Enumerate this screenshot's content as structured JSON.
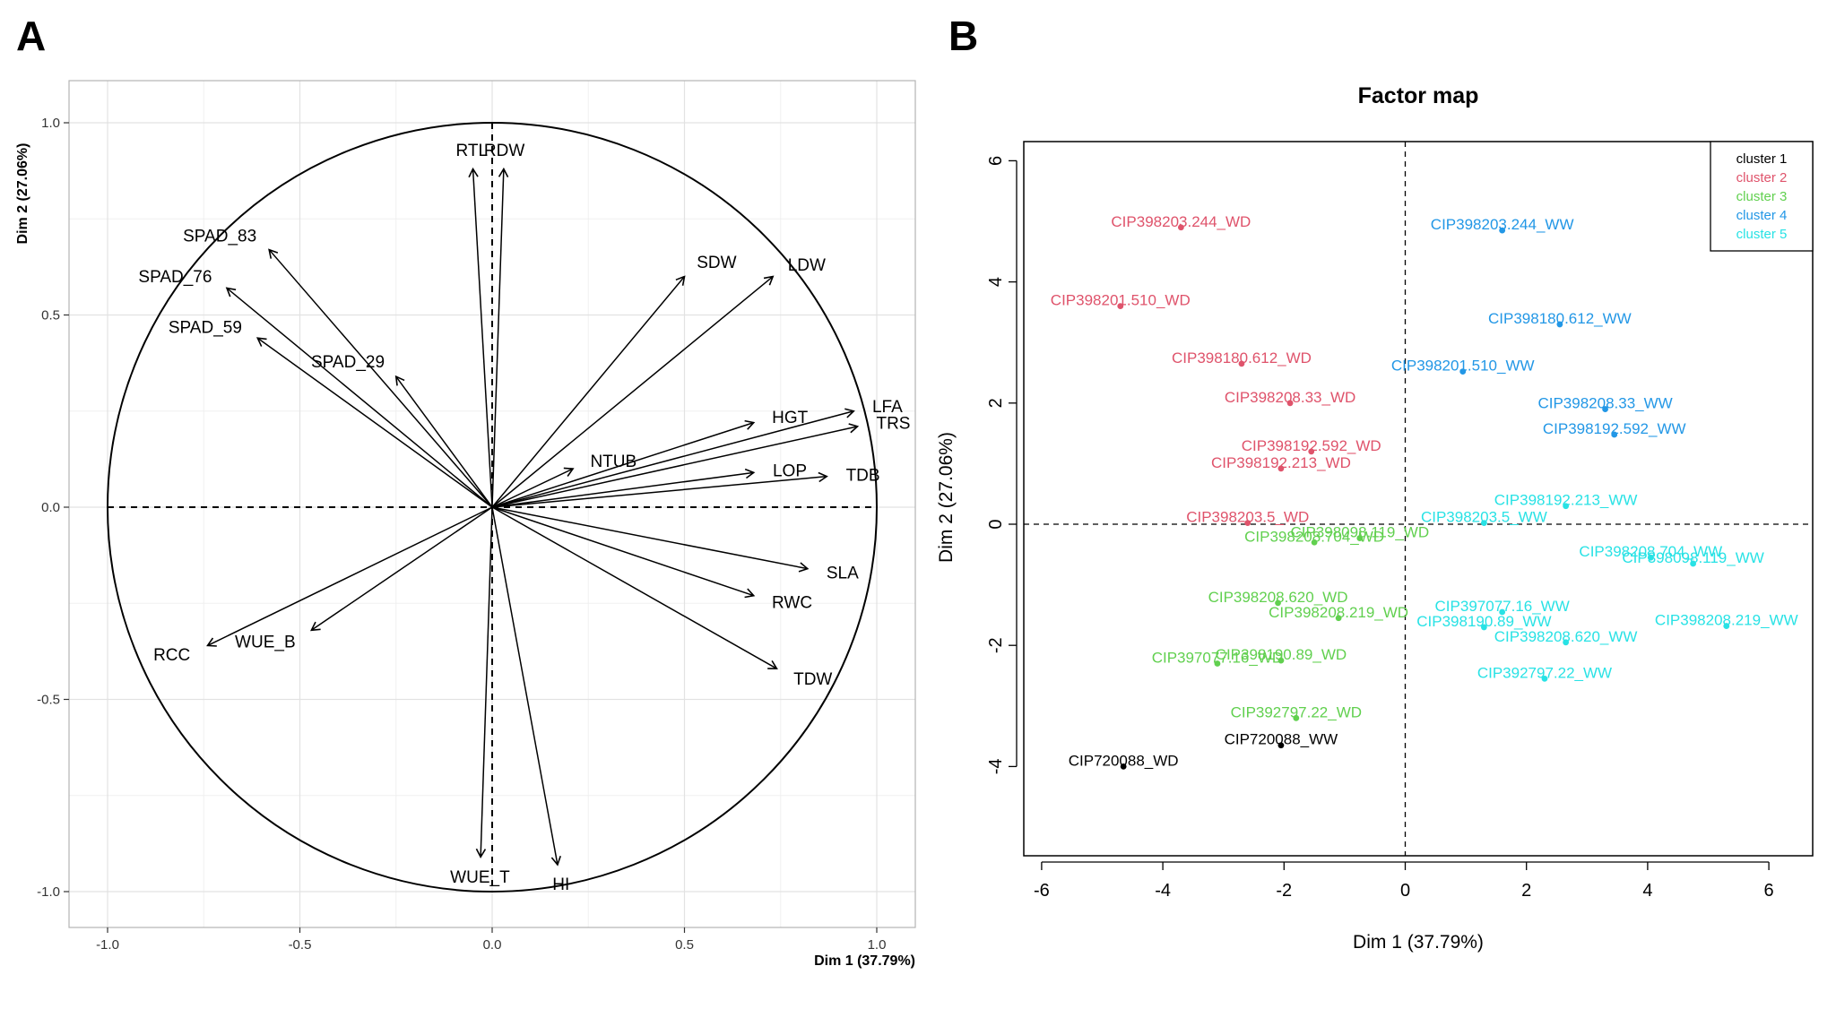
{
  "panels": {
    "a_letter": "A",
    "b_letter": "B"
  },
  "chart_data": [
    {
      "type": "scatter",
      "subtype": "pca-variable-correlation-circle",
      "xlabel": "Dim 1 (37.79%)",
      "ylabel": "Dim 2 (27.06%)",
      "xlim": [
        -1.0,
        1.0
      ],
      "ylim": [
        -1.0,
        1.0
      ],
      "xticks": [
        "-1.0",
        "-0.5",
        "0.0",
        "0.5",
        "1.0"
      ],
      "yticks": [
        "-1.0",
        "-0.5",
        "0.0",
        "0.5",
        "1.0"
      ],
      "grid": true,
      "vectors": [
        {
          "name": "RTL",
          "x": -0.05,
          "y": 0.88
        },
        {
          "name": "RDW",
          "x": 0.03,
          "y": 0.88
        },
        {
          "name": "SPAD_83",
          "x": -0.58,
          "y": 0.67
        },
        {
          "name": "SPAD_76",
          "x": -0.69,
          "y": 0.57
        },
        {
          "name": "SPAD_59",
          "x": -0.61,
          "y": 0.44
        },
        {
          "name": "SPAD_29",
          "x": -0.25,
          "y": 0.34
        },
        {
          "name": "SDW",
          "x": 0.5,
          "y": 0.6
        },
        {
          "name": "LDW",
          "x": 0.73,
          "y": 0.6
        },
        {
          "name": "LFA",
          "x": 0.94,
          "y": 0.25
        },
        {
          "name": "TRS",
          "x": 0.95,
          "y": 0.21
        },
        {
          "name": "HGT",
          "x": 0.68,
          "y": 0.22
        },
        {
          "name": "NTUB",
          "x": 0.21,
          "y": 0.1
        },
        {
          "name": "LOP",
          "x": 0.68,
          "y": 0.09
        },
        {
          "name": "TDB",
          "x": 0.87,
          "y": 0.08
        },
        {
          "name": "SLA",
          "x": 0.82,
          "y": -0.16
        },
        {
          "name": "RWC",
          "x": 0.68,
          "y": -0.23
        },
        {
          "name": "TDW",
          "x": 0.74,
          "y": -0.42
        },
        {
          "name": "RCC",
          "x": -0.74,
          "y": -0.36
        },
        {
          "name": "WUE_B",
          "x": -0.47,
          "y": -0.32
        },
        {
          "name": "WUE_T",
          "x": -0.03,
          "y": -0.91
        },
        {
          "name": "HI",
          "x": 0.17,
          "y": -0.93
        }
      ]
    },
    {
      "type": "scatter",
      "title": "Factor map",
      "xlabel": "Dim 1 (37.79%)",
      "ylabel": "Dim 2 (27.06%)",
      "xlim": [
        -6.2,
        6.8
      ],
      "ylim": [
        -5.5,
        6.3
      ],
      "xticks": [
        "-6",
        "-4",
        "-2",
        "0",
        "2",
        "4",
        "6"
      ],
      "yticks": [
        "-4",
        "-2",
        "0",
        "2",
        "4",
        "6"
      ],
      "grid": false,
      "legend": {
        "position": "top-right",
        "entries": [
          {
            "name": "cluster 1",
            "color": "#000000"
          },
          {
            "name": "cluster 2",
            "color": "#DF536B"
          },
          {
            "name": "cluster 3",
            "color": "#61D04F"
          },
          {
            "name": "cluster 4",
            "color": "#2297E6"
          },
          {
            "name": "cluster 5",
            "color": "#28E2E5"
          }
        ]
      },
      "points": [
        {
          "label": "CIP398203.244_WD",
          "x": -3.7,
          "y": 4.9,
          "cluster": 2
        },
        {
          "label": "CIP398201.510_WD",
          "x": -4.7,
          "y": 3.6,
          "cluster": 2
        },
        {
          "label": "CIP398180.612_WD",
          "x": -2.7,
          "y": 2.65,
          "cluster": 2
        },
        {
          "label": "CIP398208.33_WD",
          "x": -1.9,
          "y": 2.0,
          "cluster": 2
        },
        {
          "label": "CIP398192.592_WD",
          "x": -1.55,
          "y": 1.2,
          "cluster": 2
        },
        {
          "label": "CIP398192.213_WD",
          "x": -2.05,
          "y": 0.92,
          "cluster": 2
        },
        {
          "label": "CIP398203.5_WD",
          "x": -2.6,
          "y": 0.02,
          "cluster": 2
        },
        {
          "label": "CIP398098.119_WD",
          "x": -0.75,
          "y": -0.23,
          "cluster": 3
        },
        {
          "label": "CIP398208.704_WD",
          "x": -1.5,
          "y": -0.3,
          "cluster": 3
        },
        {
          "label": "CIP398208.620_WD",
          "x": -2.1,
          "y": -1.3,
          "cluster": 3
        },
        {
          "label": "CIP398208.219_WD",
          "x": -1.1,
          "y": -1.55,
          "cluster": 3
        },
        {
          "label": "CIP398190.89_WD",
          "x": -2.05,
          "y": -2.25,
          "cluster": 3
        },
        {
          "label": "CIP397077.16_WD",
          "x": -3.1,
          "y": -2.3,
          "cluster": 3
        },
        {
          "label": "CIP392797.22_WD",
          "x": -1.8,
          "y": -3.2,
          "cluster": 3
        },
        {
          "label": "CIP720088_WW",
          "x": -2.05,
          "y": -3.65,
          "cluster": 1
        },
        {
          "label": "CIP720088_WD",
          "x": -4.65,
          "y": -4.0,
          "cluster": 1
        },
        {
          "label": "CIP398203.244_WW",
          "x": 1.6,
          "y": 4.85,
          "cluster": 4
        },
        {
          "label": "CIP398180.612_WW",
          "x": 2.55,
          "y": 3.3,
          "cluster": 4
        },
        {
          "label": "CIP398201.510_WW",
          "x": 0.95,
          "y": 2.52,
          "cluster": 4
        },
        {
          "label": "CIP398208.33_WW",
          "x": 3.3,
          "y": 1.9,
          "cluster": 4
        },
        {
          "label": "CIP398192.592_WW",
          "x": 3.45,
          "y": 1.48,
          "cluster": 4
        },
        {
          "label": "CIP398192.213_WW",
          "x": 2.65,
          "y": 0.3,
          "cluster": 5
        },
        {
          "label": "CIP398203.5_WW",
          "x": 1.3,
          "y": 0.02,
          "cluster": 5
        },
        {
          "label": "CIP398208.704_WW",
          "x": 4.05,
          "y": -0.55,
          "cluster": 5
        },
        {
          "label": "CIP398098.119_WW",
          "x": 4.75,
          "y": -0.65,
          "cluster": 5
        },
        {
          "label": "CIP397077.16_WW",
          "x": 1.6,
          "y": -1.45,
          "cluster": 5
        },
        {
          "label": "CIP398190.89_WW",
          "x": 1.3,
          "y": -1.7,
          "cluster": 5
        },
        {
          "label": "CIP398208.219_WW",
          "x": 5.3,
          "y": -1.68,
          "cluster": 5
        },
        {
          "label": "CIP398208.620_WW",
          "x": 2.65,
          "y": -1.95,
          "cluster": 5
        },
        {
          "label": "CIP392797.22_WW",
          "x": 2.3,
          "y": -2.55,
          "cluster": 5
        }
      ]
    }
  ]
}
